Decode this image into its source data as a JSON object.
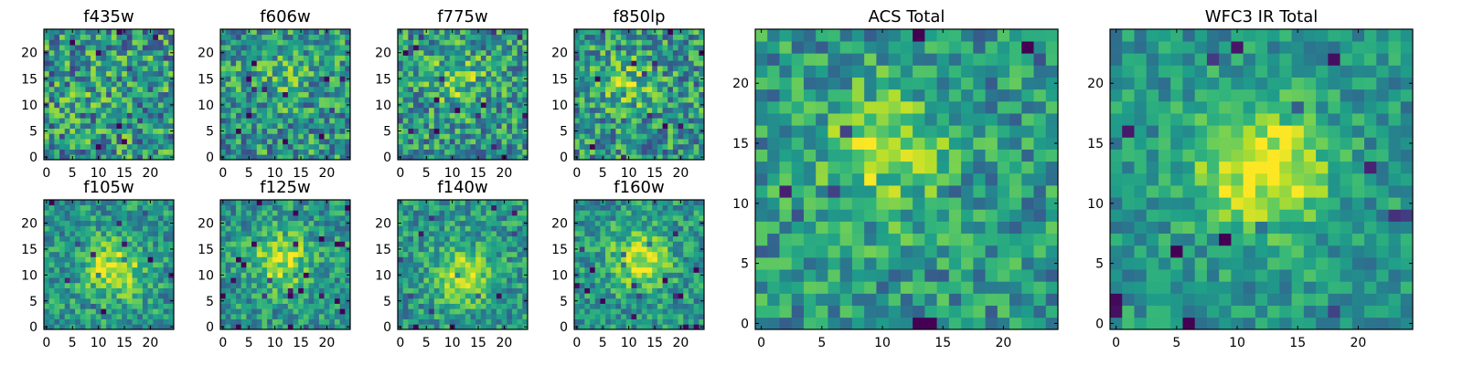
{
  "chart_data": [
    {
      "type": "heatmap",
      "title": "f435w",
      "xlim": [
        0,
        24
      ],
      "ylim": [
        0,
        24
      ],
      "xticks": [
        0,
        5,
        10,
        15,
        20
      ],
      "yticks": [
        0,
        5,
        10,
        15,
        20
      ],
      "grid": "25x25",
      "colormap": "viridis",
      "blob_center": [
        10,
        12
      ],
      "blob_strength": 0.05,
      "noise": 0.34,
      "seed": 11
    },
    {
      "type": "heatmap",
      "title": "f606w",
      "xlim": [
        0,
        24
      ],
      "ylim": [
        0,
        24
      ],
      "xticks": [
        0,
        5,
        10,
        15,
        20
      ],
      "yticks": [
        0,
        5,
        10,
        15,
        20
      ],
      "grid": "25x25",
      "colormap": "viridis",
      "blob_center": [
        11,
        16
      ],
      "blob_strength": 0.15,
      "noise": 0.3,
      "seed": 23
    },
    {
      "type": "heatmap",
      "title": "f775w",
      "xlim": [
        0,
        24
      ],
      "ylim": [
        0,
        24
      ],
      "xticks": [
        0,
        5,
        10,
        15,
        20
      ],
      "yticks": [
        0,
        5,
        10,
        15,
        20
      ],
      "grid": "25x25",
      "colormap": "viridis",
      "blob_center": [
        11,
        15
      ],
      "blob_strength": 0.22,
      "noise": 0.3,
      "seed": 37
    },
    {
      "type": "heatmap",
      "title": "f850lp",
      "xlim": [
        0,
        24
      ],
      "ylim": [
        0,
        24
      ],
      "xticks": [
        0,
        5,
        10,
        15,
        20
      ],
      "yticks": [
        0,
        5,
        10,
        15,
        20
      ],
      "grid": "25x25",
      "colormap": "viridis",
      "blob_center": [
        10,
        14
      ],
      "blob_strength": 0.2,
      "noise": 0.3,
      "seed": 41
    },
    {
      "type": "heatmap",
      "title": "f105w",
      "xlim": [
        0,
        24
      ],
      "ylim": [
        0,
        24
      ],
      "xticks": [
        0,
        5,
        10,
        15,
        20
      ],
      "yticks": [
        0,
        5,
        10,
        15,
        20
      ],
      "grid": "25x25",
      "colormap": "viridis",
      "blob_center": [
        13,
        11
      ],
      "blob_strength": 0.42,
      "noise": 0.22,
      "seed": 53
    },
    {
      "type": "heatmap",
      "title": "f125w",
      "xlim": [
        0,
        24
      ],
      "ylim": [
        0,
        24
      ],
      "xticks": [
        0,
        5,
        10,
        15,
        20
      ],
      "yticks": [
        0,
        5,
        10,
        15,
        20
      ],
      "grid": "25x25",
      "colormap": "viridis",
      "blob_center": [
        11,
        13
      ],
      "blob_strength": 0.38,
      "noise": 0.22,
      "seed": 67
    },
    {
      "type": "heatmap",
      "title": "f140w",
      "xlim": [
        0,
        24
      ],
      "ylim": [
        0,
        24
      ],
      "xticks": [
        0,
        5,
        10,
        15,
        20
      ],
      "yticks": [
        0,
        5,
        10,
        15,
        20
      ],
      "grid": "25x25",
      "colormap": "viridis",
      "blob_center": [
        12,
        10
      ],
      "blob_strength": 0.38,
      "noise": 0.22,
      "seed": 79
    },
    {
      "type": "heatmap",
      "title": "f160w",
      "xlim": [
        0,
        24
      ],
      "ylim": [
        0,
        24
      ],
      "xticks": [
        0,
        5,
        10,
        15,
        20
      ],
      "yticks": [
        0,
        5,
        10,
        15,
        20
      ],
      "grid": "25x25",
      "colormap": "viridis",
      "blob_center": [
        12,
        13
      ],
      "blob_strength": 0.4,
      "noise": 0.22,
      "seed": 83
    },
    {
      "type": "heatmap",
      "title": "ACS Total",
      "xlim": [
        0,
        24
      ],
      "ylim": [
        0,
        24
      ],
      "xticks": [
        0,
        5,
        10,
        15,
        20
      ],
      "yticks": [
        0,
        5,
        10,
        15,
        20
      ],
      "grid": "25x25",
      "colormap": "viridis",
      "blob_center": [
        10,
        14
      ],
      "blob_strength": 0.3,
      "noise": 0.24,
      "seed": 97
    },
    {
      "type": "heatmap",
      "title": "WFC3 IR Total",
      "xlim": [
        0,
        24
      ],
      "ylim": [
        0,
        24
      ],
      "xticks": [
        0,
        5,
        10,
        15,
        20
      ],
      "yticks": [
        0,
        5,
        10,
        15,
        20
      ],
      "grid": "25x25",
      "colormap": "viridis",
      "blob_center": [
        12,
        13
      ],
      "blob_strength": 0.48,
      "noise": 0.18,
      "seed": 101
    }
  ]
}
